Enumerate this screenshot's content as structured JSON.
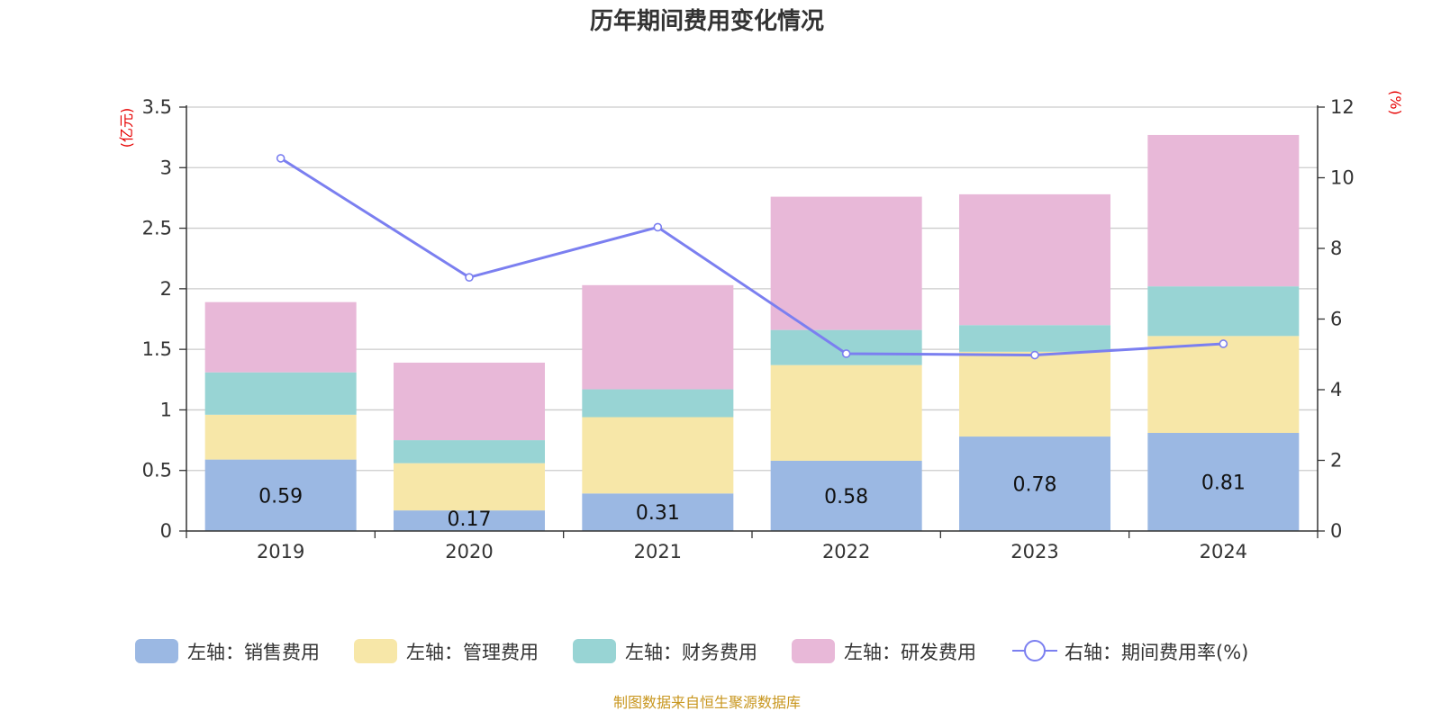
{
  "chart_data": {
    "type": "bar",
    "title": "历年期间费用变化情况",
    "categories": [
      "2019",
      "2020",
      "2021",
      "2022",
      "2023",
      "2024"
    ],
    "series": [
      {
        "name": "左轴：销售费用",
        "axis": "left",
        "kind": "stacked-bar",
        "color": "#9bb8e3",
        "values": [
          0.59,
          0.17,
          0.31,
          0.58,
          0.78,
          0.81
        ]
      },
      {
        "name": "左轴：管理费用",
        "axis": "left",
        "kind": "stacked-bar",
        "color": "#f7e7a8",
        "values": [
          0.37,
          0.39,
          0.63,
          0.79,
          0.7,
          0.8
        ]
      },
      {
        "name": "左轴：财务费用",
        "axis": "left",
        "kind": "stacked-bar",
        "color": "#98d4d4",
        "values": [
          0.35,
          0.19,
          0.23,
          0.29,
          0.22,
          0.41
        ]
      },
      {
        "name": "左轴：研发费用",
        "axis": "left",
        "kind": "stacked-bar",
        "color": "#e8b8d8",
        "values": [
          0.58,
          0.64,
          0.86,
          1.1,
          1.08,
          1.25
        ]
      },
      {
        "name": "右轴：期间费用率(%)",
        "axis": "right",
        "kind": "line",
        "color": "#7b7ff0",
        "values": [
          10.55,
          7.18,
          8.6,
          5.02,
          4.98,
          5.3
        ]
      }
    ],
    "data_labels": [
      "0.59",
      "0.17",
      "0.31",
      "0.58",
      "0.78",
      "0.81"
    ],
    "y_left": {
      "label": "(亿元)",
      "ylim": [
        0,
        3.5
      ],
      "ticks": [
        "0",
        "0.5",
        "1",
        "1.5",
        "2",
        "2.5",
        "3",
        "3.5"
      ]
    },
    "y_right": {
      "label": "(%)",
      "ylim": [
        0,
        12
      ],
      "ticks": [
        "0",
        "2",
        "4",
        "6",
        "8",
        "10",
        "12"
      ]
    },
    "grid": true,
    "legend_position": "bottom"
  },
  "source": "制图数据来自恒生聚源数据库"
}
